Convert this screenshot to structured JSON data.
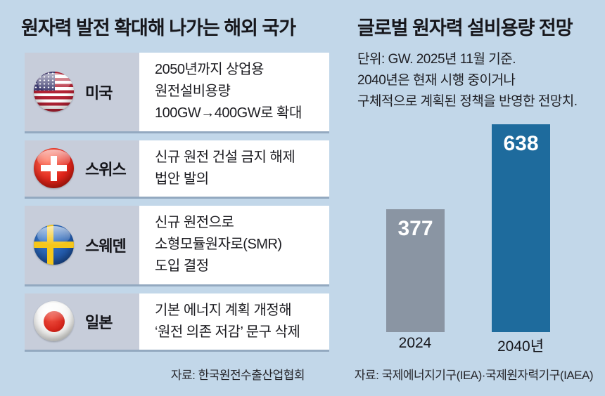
{
  "left_panel": {
    "title": "원자력 발전 확대해 나가는 해외 국가",
    "rows": [
      {
        "country": "미국",
        "flag_icon": "usa-flag-icon",
        "desc": "2050년까지 상업용\n원전설비용량\n100GW→400GW로 확대"
      },
      {
        "country": "스위스",
        "flag_icon": "switzerland-flag-icon",
        "desc": "신규 원전 건설 금지 해제\n법안 발의"
      },
      {
        "country": "스웨덴",
        "flag_icon": "sweden-flag-icon",
        "desc": "신규 원전으로\n소형모듈원자로(SMR)\n도입 결정"
      },
      {
        "country": "일본",
        "flag_icon": "japan-flag-icon",
        "desc": "기본 에너지 계획 개정해\n‘원전 의존 저감’ 문구 삭제"
      }
    ],
    "source": "자료: 한국원전수출산업협회"
  },
  "right_panel": {
    "title": "글로벌 원자력 설비용량 전망",
    "note": "단위: GW. 2025년 11월 기준.\n2040년은 현재 시행 중이거나\n구체적으로 계획된 정책을 반영한 전망치.",
    "source": "자료: 국제에너지기구(IEA)·국제원자력기구(IAEA)"
  },
  "chart_data": {
    "type": "bar",
    "title": "글로벌 원자력 설비용량 전망",
    "unit": "GW",
    "categories": [
      "2024",
      "2040년"
    ],
    "values": [
      377,
      638
    ],
    "bar_colors": [
      "#8a95a3",
      "#1e6b9d"
    ],
    "value_label_color": "#ffffff",
    "ylim": [
      0,
      638
    ],
    "grid": false,
    "legend": false
  },
  "colors": {
    "background": "#c2d7e9",
    "label_cell": "#c7cdda",
    "content_cell": "#ffffff",
    "bar_2024": "#8a95a3",
    "bar_2040": "#1e6b9d"
  }
}
